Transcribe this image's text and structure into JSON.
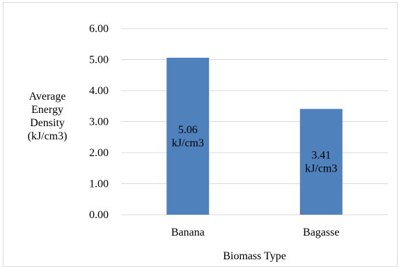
{
  "chart_data": {
    "type": "bar",
    "categories": [
      "Banana",
      "Bagasse"
    ],
    "values": [
      5.06,
      3.41
    ],
    "data_labels": [
      [
        "5.06",
        "kJ/cm3"
      ],
      [
        "3.41",
        "kJ/cm3"
      ]
    ],
    "ylim": [
      0,
      6
    ],
    "yticks": [
      "0.00",
      "1.00",
      "2.00",
      "3.00",
      "4.00",
      "5.00",
      "6.00"
    ],
    "ylabel_lines": [
      "Average",
      "Energy",
      "Density",
      "(kJ/cm3)"
    ],
    "xlabel": "Biomass Type",
    "grid": true,
    "bar_color": "#4f81bd",
    "grid_color": "#d9d9d9"
  }
}
